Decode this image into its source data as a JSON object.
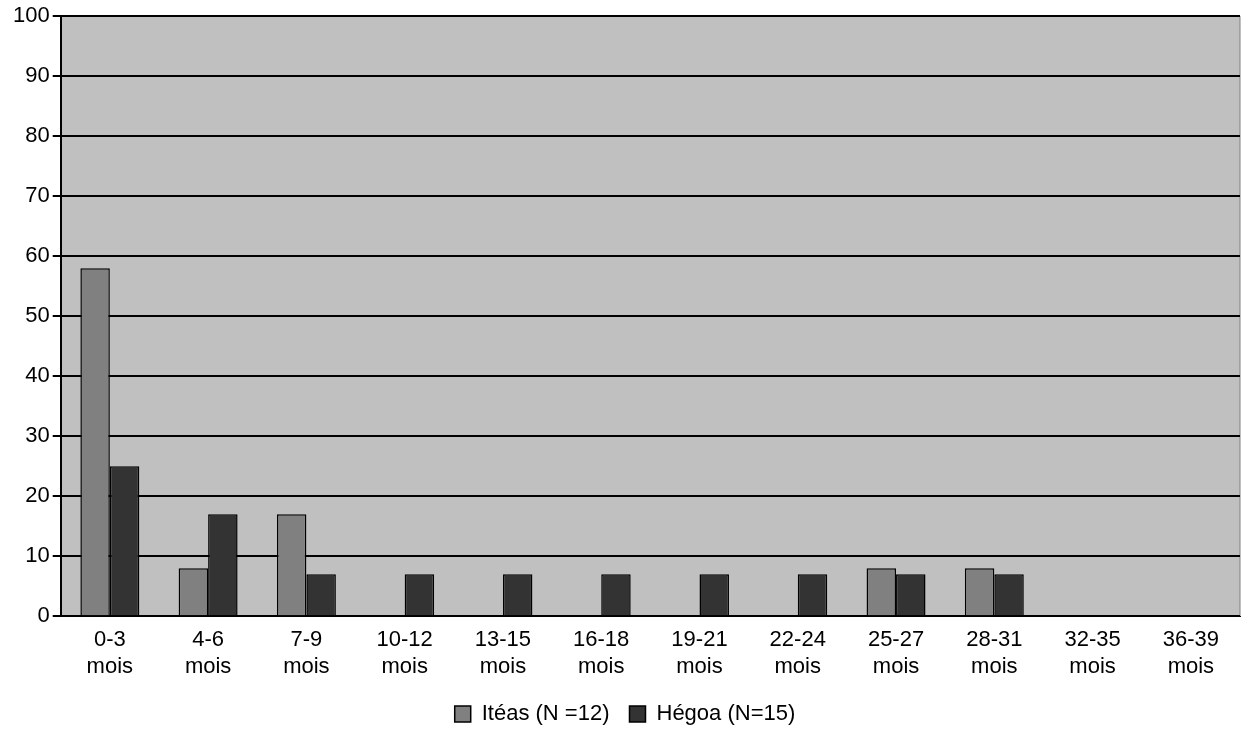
{
  "chart_data": {
    "type": "bar",
    "categories": [
      "0-3 mois",
      "4-6 mois",
      "7-9 mois",
      "10-12 mois",
      "13-15 mois",
      "16-18 mois",
      "19-21 mois",
      "22-24 mois",
      "25-27 mois",
      "28-31 mois",
      "32-35 mois",
      "36-39 mois"
    ],
    "series": [
      {
        "name": "Itéas (N =12)",
        "color": "#808080",
        "values": [
          58,
          8,
          17,
          0,
          0,
          0,
          0,
          0,
          8,
          8,
          0,
          0
        ]
      },
      {
        "name": "Hégoa (N=15)",
        "color": "#333333",
        "values": [
          25,
          17,
          7,
          7,
          7,
          7,
          7,
          7,
          7,
          7,
          0,
          0
        ]
      }
    ],
    "ylim": [
      0,
      100
    ],
    "yticks": [
      0,
      10,
      20,
      30,
      40,
      50,
      60,
      70,
      80,
      90,
      100
    ],
    "grid": "y",
    "legend": "bottom"
  }
}
